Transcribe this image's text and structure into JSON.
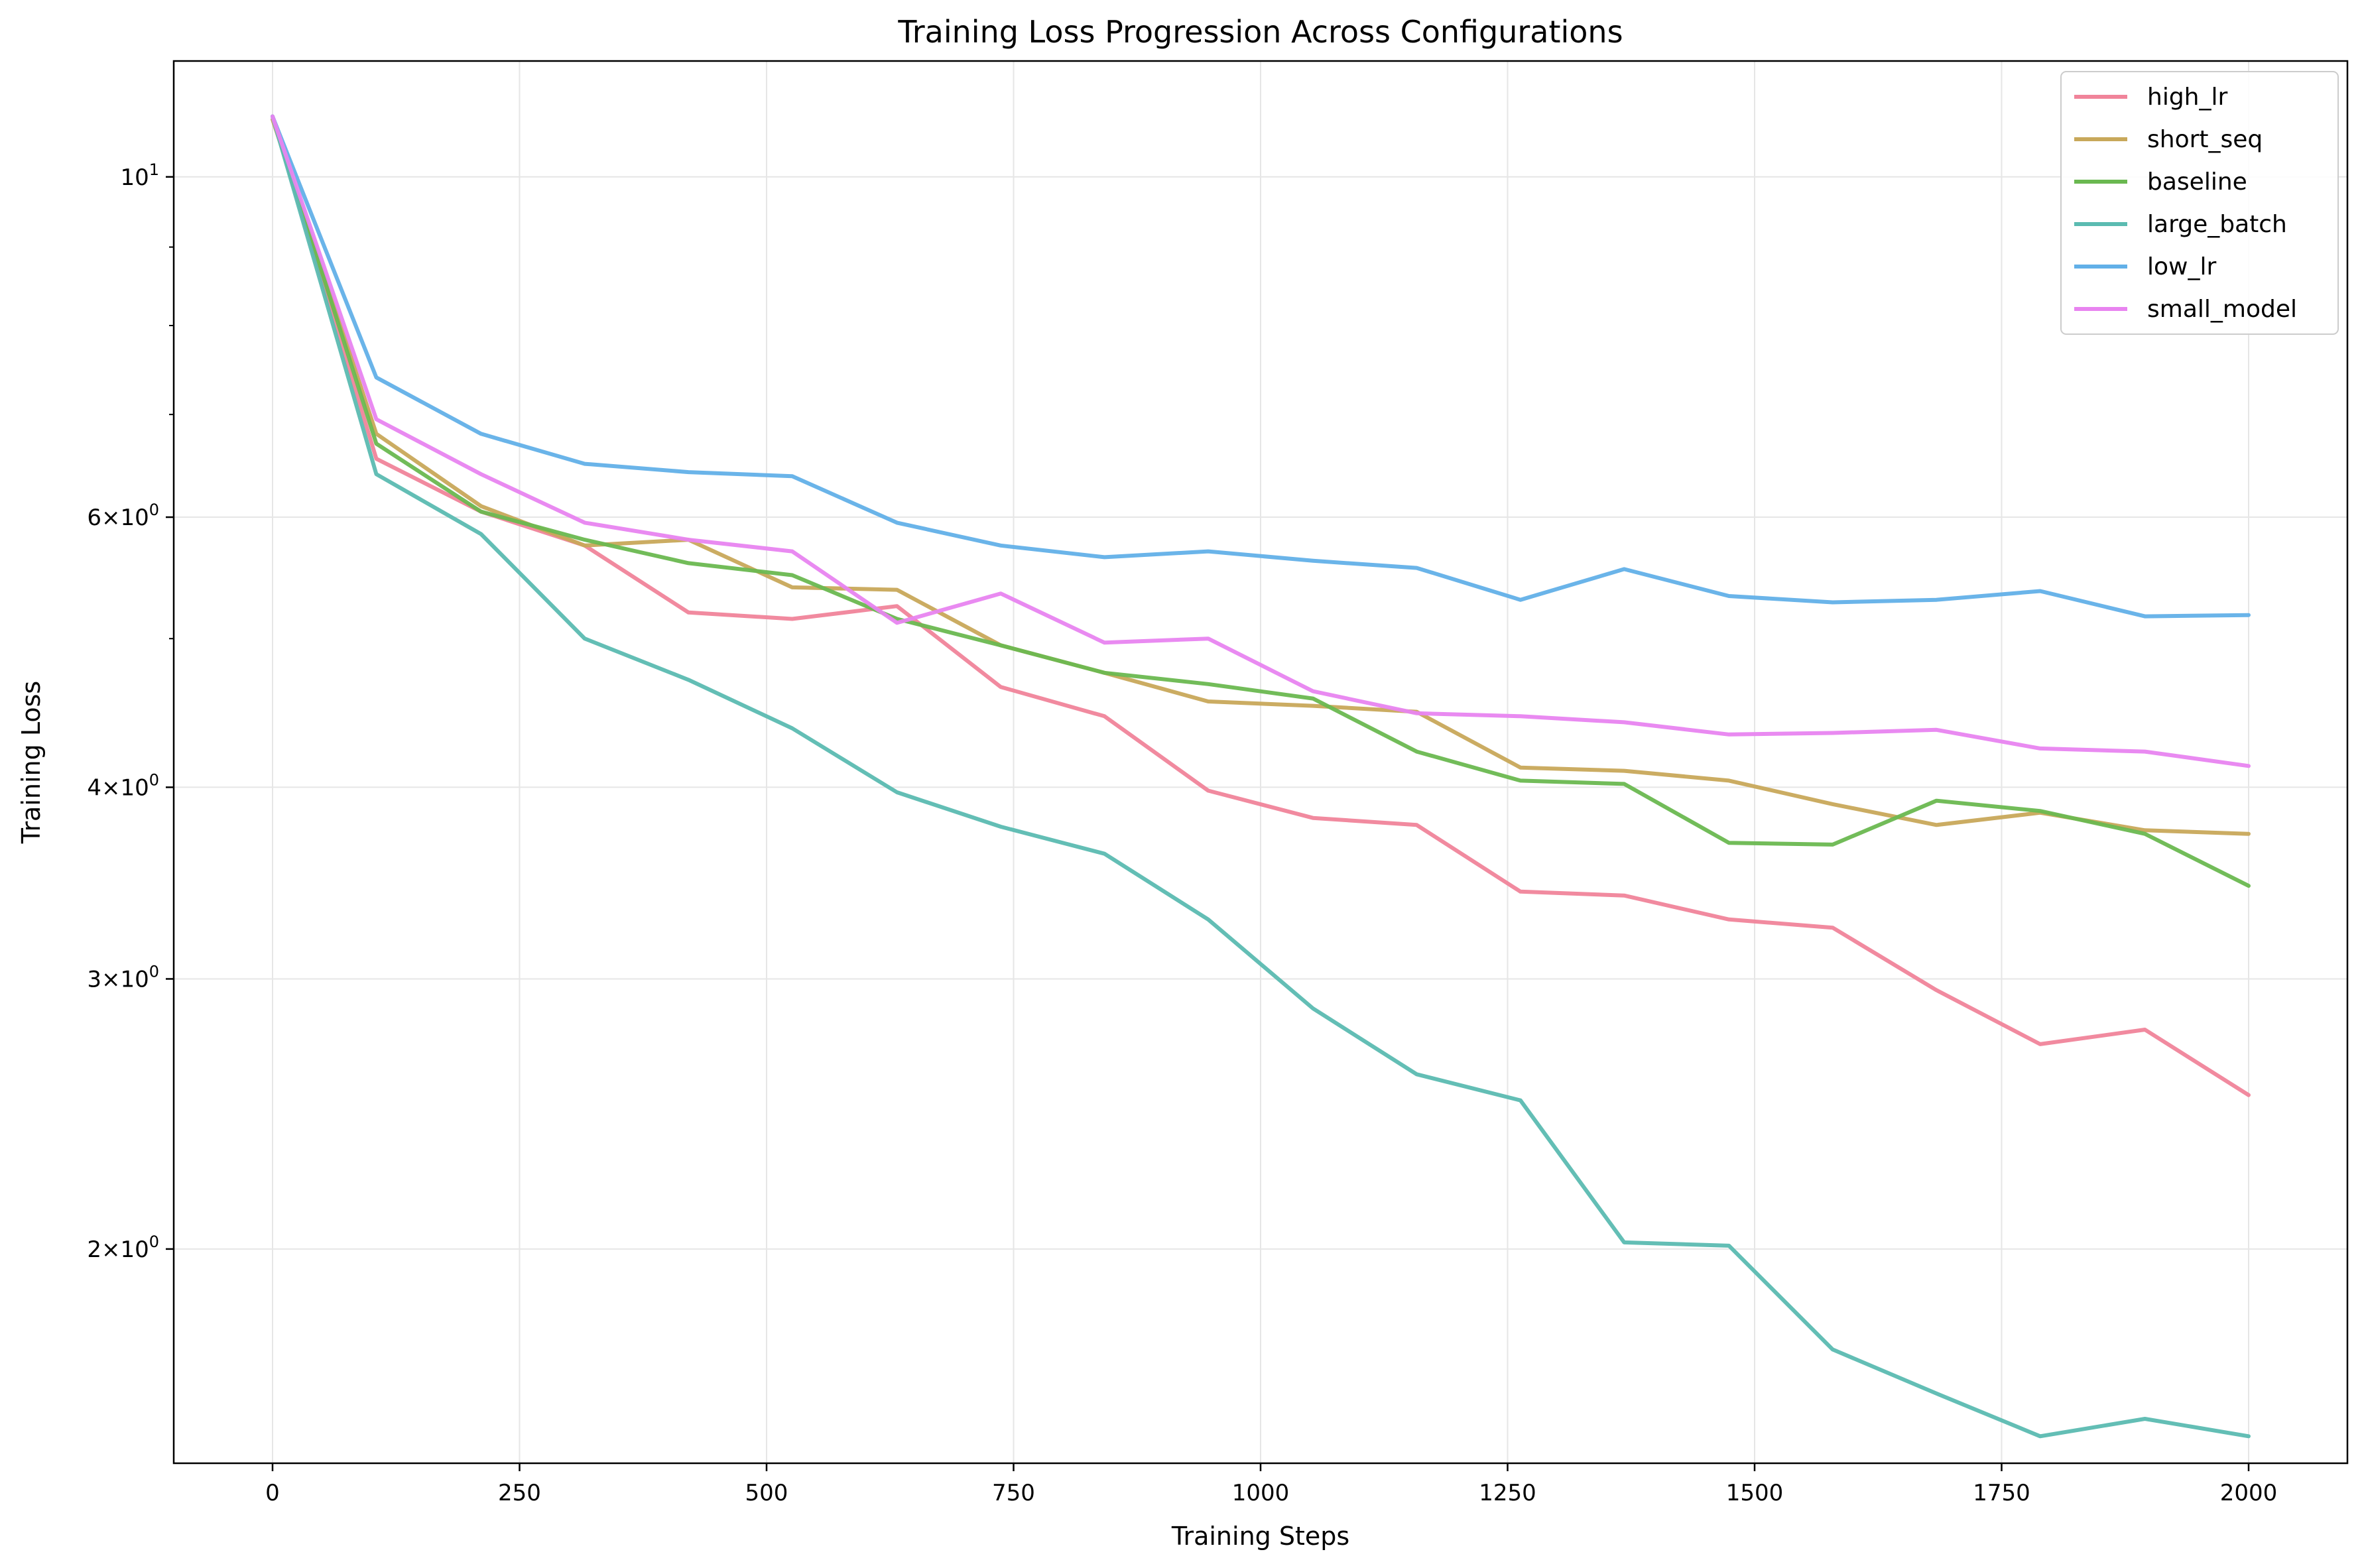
{
  "chart_data": {
    "type": "line",
    "title": "Training Loss Progression Across Configurations",
    "xlabel": "Training Steps",
    "ylabel": "Training Loss",
    "y_scale": "log",
    "xlim": [
      -100,
      2100
    ],
    "ylim": [
      1.45,
      11.9
    ],
    "x_ticks": [
      0,
      250,
      500,
      750,
      1000,
      1250,
      1500,
      1750,
      2000
    ],
    "x_tick_labels": [
      "0",
      "250",
      "500",
      "750",
      "1000",
      "1250",
      "1500",
      "1750",
      "2000"
    ],
    "y_major_ticks": [
      {
        "value": 2,
        "mantissa": "2",
        "exponent": "0"
      },
      {
        "value": 3,
        "mantissa": "3",
        "exponent": "0"
      },
      {
        "value": 4,
        "mantissa": "4",
        "exponent": "0"
      },
      {
        "value": 6,
        "mantissa": "6",
        "exponent": "0"
      },
      {
        "value": 10,
        "mantissa": "",
        "exponent": "1"
      }
    ],
    "y_minor_ticks": [
      5,
      7,
      8,
      9
    ],
    "grid": true,
    "legend_position": "top-right",
    "x": [
      0,
      105,
      211,
      316,
      421,
      526,
      632,
      737,
      842,
      947,
      1053,
      1158,
      1263,
      1368,
      1474,
      1579,
      1684,
      1789,
      1895,
      2000
    ],
    "series": [
      {
        "name": "high_lr",
        "color": "#f0849a",
        "values": [
          10.95,
          6.55,
          6.05,
          5.75,
          5.2,
          5.15,
          5.25,
          4.65,
          4.45,
          3.98,
          3.82,
          3.78,
          3.42,
          3.4,
          3.28,
          3.24,
          2.95,
          2.72,
          2.78,
          2.52
        ]
      },
      {
        "name": "short_seq",
        "color": "#c8a85a",
        "values": [
          10.9,
          6.8,
          6.1,
          5.75,
          5.8,
          5.4,
          5.38,
          4.95,
          4.75,
          4.55,
          4.52,
          4.48,
          4.12,
          4.1,
          4.04,
          3.9,
          3.78,
          3.85,
          3.75,
          3.73
        ]
      },
      {
        "name": "baseline",
        "color": "#6ab850",
        "values": [
          10.95,
          6.7,
          6.05,
          5.8,
          5.6,
          5.5,
          5.15,
          4.95,
          4.75,
          4.67,
          4.57,
          4.22,
          4.04,
          4.02,
          3.68,
          3.67,
          3.92,
          3.86,
          3.73,
          3.45
        ]
      },
      {
        "name": "large_batch",
        "color": "#5bbbb1",
        "values": [
          10.95,
          6.4,
          5.85,
          5.0,
          4.7,
          4.37,
          3.97,
          3.77,
          3.62,
          3.28,
          2.87,
          2.6,
          2.5,
          2.02,
          2.01,
          1.72,
          1.61,
          1.51,
          1.55,
          1.51
        ]
      },
      {
        "name": "low_lr",
        "color": "#62b0e8",
        "values": [
          10.95,
          7.4,
          6.8,
          6.5,
          6.42,
          6.38,
          5.95,
          5.75,
          5.65,
          5.7,
          5.62,
          5.56,
          5.3,
          5.55,
          5.33,
          5.28,
          5.3,
          5.37,
          5.17,
          5.18
        ]
      },
      {
        "name": "small_model",
        "color": "#e884f0",
        "values": [
          10.95,
          6.95,
          6.4,
          5.95,
          5.8,
          5.7,
          5.12,
          5.35,
          4.97,
          5.0,
          4.62,
          4.47,
          4.45,
          4.41,
          4.33,
          4.34,
          4.36,
          4.24,
          4.22,
          4.13
        ]
      }
    ]
  }
}
